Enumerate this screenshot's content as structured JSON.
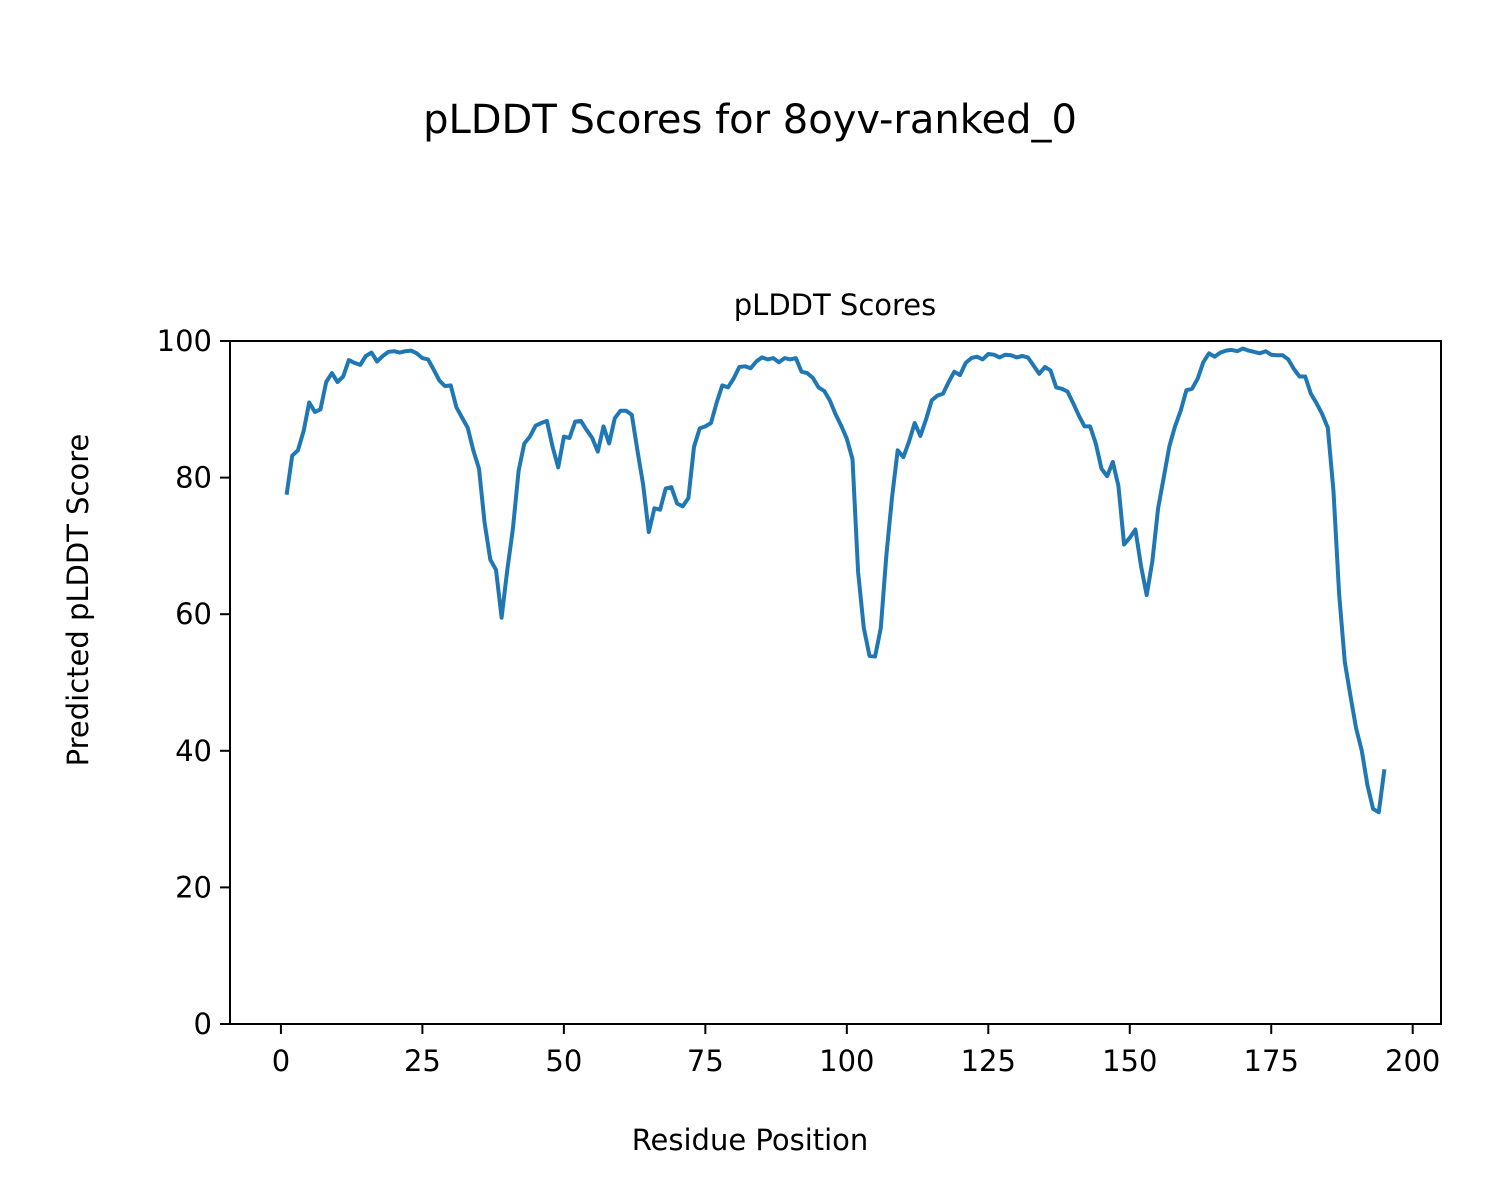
{
  "chart_data": {
    "type": "line",
    "title": "pLDDT Scores for 8oyv-ranked_0",
    "subtitle": "pLDDT Scores",
    "xlabel": "Residue Position",
    "ylabel": "Predicted pLDDT Score",
    "xlim": [
      -9,
      205
    ],
    "ylim": [
      0,
      100
    ],
    "xticks": [
      0,
      25,
      50,
      75,
      100,
      125,
      150,
      175,
      200
    ],
    "yticks": [
      0,
      20,
      40,
      60,
      80,
      100
    ],
    "grid": false,
    "series": [
      {
        "color": "#1f77b4",
        "x": [
          1,
          2,
          3,
          4,
          5,
          6,
          7,
          8,
          9,
          10,
          11,
          12,
          13,
          14,
          15,
          16,
          17,
          18,
          19,
          20,
          21,
          22,
          23,
          24,
          25,
          26,
          27,
          28,
          29,
          30,
          31,
          32,
          33,
          34,
          35,
          36,
          37,
          38,
          39,
          40,
          41,
          42,
          43,
          44,
          45,
          46,
          47,
          48,
          49,
          50,
          51,
          52,
          53,
          54,
          55,
          56,
          57,
          58,
          59,
          60,
          61,
          62,
          63,
          64,
          65,
          66,
          67,
          68,
          69,
          70,
          71,
          72,
          73,
          74,
          75,
          76,
          77,
          78,
          79,
          80,
          81,
          82,
          83,
          84,
          85,
          86,
          87,
          88,
          89,
          90,
          91,
          92,
          93,
          94,
          95,
          96,
          97,
          98,
          99,
          100,
          101,
          102,
          103,
          104,
          105,
          106,
          107,
          108,
          109,
          110,
          111,
          112,
          113,
          114,
          115,
          116,
          117,
          118,
          119,
          120,
          121,
          122,
          123,
          124,
          125,
          126,
          127,
          128,
          129,
          130,
          131,
          132,
          133,
          134,
          135,
          136,
          137,
          138,
          139,
          140,
          141,
          142,
          143,
          144,
          145,
          146,
          147,
          148,
          149,
          150,
          151,
          152,
          153,
          154,
          155,
          156,
          157,
          158,
          159,
          160,
          161,
          162,
          163,
          164,
          165,
          166,
          167,
          168,
          169,
          170,
          171,
          172,
          173,
          174,
          175,
          176,
          177,
          178,
          179,
          180,
          181,
          182,
          183,
          184,
          185,
          186,
          187,
          188,
          189,
          190,
          191,
          192,
          193,
          194,
          195
        ],
        "y": [
          77.5,
          83.2,
          84,
          86.8,
          91,
          89.6,
          90,
          94,
          95.3,
          94,
          94.8,
          97.2,
          96.8,
          96.5,
          97.8,
          98.3,
          97,
          97.8,
          98.4,
          98.5,
          98.3,
          98.5,
          98.6,
          98.2,
          97.5,
          97.3,
          95.8,
          94.2,
          93.4,
          93.5,
          90.3,
          88.8,
          87.3,
          84,
          81.3,
          73.4,
          68,
          66.5,
          59.5,
          66.5,
          72.5,
          81,
          85,
          86,
          87.6,
          88,
          88.3,
          84.5,
          81.5,
          86,
          85.8,
          88.2,
          88.3,
          87,
          85.8,
          83.8,
          87.5,
          85,
          88.7,
          89.8,
          89.8,
          89.2,
          84,
          79,
          72,
          75.5,
          75.3,
          78.4,
          78.6,
          76.2,
          75.8,
          77,
          84.5,
          87.2,
          87.5,
          88,
          91,
          93.5,
          93.2,
          94.5,
          96.2,
          96.3,
          96,
          97,
          97.6,
          97.3,
          97.5,
          96.9,
          97.5,
          97.3,
          97.5,
          95.5,
          95.3,
          94.6,
          93.2,
          92.7,
          91.3,
          89.3,
          87.6,
          85.7,
          82.7,
          66.2,
          58,
          53.9,
          53.8,
          58,
          68.7,
          77.2,
          84,
          83,
          85.3,
          88,
          86.1,
          88.5,
          91.3,
          92,
          92.3,
          94,
          95.5,
          95,
          96.8,
          97.5,
          97.7,
          97.3,
          98.1,
          98,
          97.6,
          98,
          97.9,
          97.6,
          97.8,
          97.6,
          96.4,
          95.2,
          96.2,
          95.7,
          93.2,
          93,
          92.6,
          90.9,
          89.1,
          87.5,
          87.5,
          85,
          81.3,
          80.2,
          82.3,
          78.8,
          70.2,
          71.2,
          72.4,
          67,
          62.8,
          67.8,
          75.5,
          80,
          84.6,
          87.5,
          89.8,
          92.8,
          93,
          94.5,
          96.9,
          98.2,
          97.7,
          98.3,
          98.6,
          98.7,
          98.5,
          98.9,
          98.6,
          98.4,
          98.2,
          98.5,
          98,
          97.9,
          97.9,
          97.3,
          95.9,
          94.8,
          94.8,
          92.3,
          90.9,
          89.3,
          87.3,
          78,
          63,
          53,
          48,
          43.3,
          40,
          35,
          31.5,
          31,
          37.3
        ]
      }
    ]
  }
}
